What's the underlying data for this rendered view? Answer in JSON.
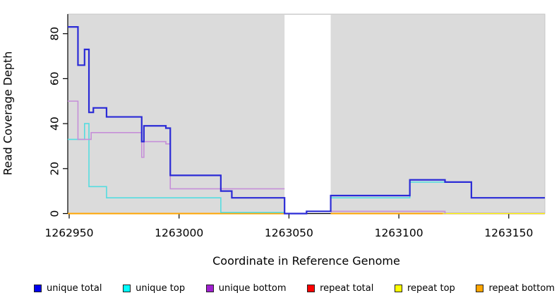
{
  "chart_data": {
    "type": "line",
    "subtype": "step-coverage-plot",
    "title": "",
    "xlabel": "Coordinate in Reference Genome",
    "ylabel": "Read Coverage Depth",
    "xlim": [
      1262949,
      1263167
    ],
    "ylim": [
      0,
      85
    ],
    "x_ticks": [
      "1262950",
      "1263000",
      "1263050",
      "1263100",
      "1263150"
    ],
    "x_tick_values": [
      1262950,
      1263000,
      1263050,
      1263100,
      1263150
    ],
    "y_ticks": [
      "0",
      "20",
      "40",
      "60",
      "80"
    ],
    "y_tick_values": [
      0,
      20,
      40,
      60,
      80
    ],
    "grid": "off",
    "panel_background": "#DBDBDB",
    "gap_region": {
      "start": 1263048,
      "end": 1263069,
      "color": "#FFFFFF"
    },
    "legend_position": "bottom-horizontal",
    "series": [
      {
        "name": "repeat total",
        "line_color": "#C7517B",
        "width": 1.4,
        "segments": [
          [
            [
              1262949,
              0
            ],
            [
              1263048,
              0
            ]
          ],
          [
            [
              1263069,
              0
            ],
            [
              1263167,
              0
            ]
          ]
        ]
      },
      {
        "name": "repeat top",
        "line_color": "#FFFF00",
        "width": 1.2,
        "segments": [
          [
            [
              1262949,
              0
            ],
            [
              1263048,
              0
            ]
          ],
          [
            [
              1263069,
              0
            ],
            [
              1263167,
              0
            ]
          ]
        ]
      },
      {
        "name": "repeat bottom",
        "line_color": "#FFA500",
        "width": 2,
        "segments": [
          [
            [
              1262949,
              0
            ],
            [
              1263048,
              0
            ]
          ],
          [
            [
              1263069,
              0
            ],
            [
              1263120,
              0
            ]
          ]
        ]
      },
      {
        "name": "unique top",
        "line_color": "#55DCE0",
        "width": 1.6,
        "segments": [
          [
            [
              1262949,
              33
            ],
            [
              1262957,
              40
            ],
            [
              1262959,
              12
            ],
            [
              1262967,
              7
            ],
            [
              1263019,
              0.5
            ],
            [
              1263048,
              0.5
            ]
          ],
          [
            [
              1263069,
              7
            ],
            [
              1263105,
              14
            ],
            [
              1263133,
              7
            ],
            [
              1263167,
              7
            ]
          ]
        ]
      },
      {
        "name": "unique bottom",
        "line_color": "#C58FD8",
        "width": 1.6,
        "segments": [
          [
            [
              1262949,
              50
            ],
            [
              1262954,
              33
            ],
            [
              1262960,
              36
            ],
            [
              1262983,
              25
            ],
            [
              1262984,
              32
            ],
            [
              1262994,
              31
            ],
            [
              1262996,
              11
            ],
            [
              1263048,
              11
            ]
          ],
          [
            [
              1263069,
              1
            ],
            [
              1263121,
              0
            ]
          ]
        ]
      },
      {
        "name": "unique total",
        "line_color": "#2B2BD6",
        "width": 2.2,
        "segments": [
          [
            [
              1262949,
              83
            ],
            [
              1262954,
              66
            ],
            [
              1262957,
              73
            ],
            [
              1262959,
              45
            ],
            [
              1262961,
              47
            ],
            [
              1262967,
              43
            ],
            [
              1262983,
              32
            ],
            [
              1262984,
              39
            ],
            [
              1262994,
              38
            ],
            [
              1262996,
              17
            ],
            [
              1263019,
              10
            ],
            [
              1263024,
              7
            ],
            [
              1263048,
              0
            ],
            [
              1263058,
              1
            ],
            [
              1263069,
              8
            ],
            [
              1263105,
              15
            ],
            [
              1263121,
              14
            ],
            [
              1263133,
              7
            ],
            [
              1263167,
              7
            ]
          ]
        ]
      }
    ],
    "legend": [
      {
        "label": "unique total",
        "fill": "#0000EE"
      },
      {
        "label": "unique top",
        "fill": "#00FFFF"
      },
      {
        "label": "unique bottom",
        "fill": "#A020D0"
      },
      {
        "label": "repeat total",
        "fill": "#FF0000"
      },
      {
        "label": "repeat top",
        "fill": "#FFFF00"
      },
      {
        "label": "repeat bottom",
        "fill": "#FFA500"
      }
    ]
  }
}
